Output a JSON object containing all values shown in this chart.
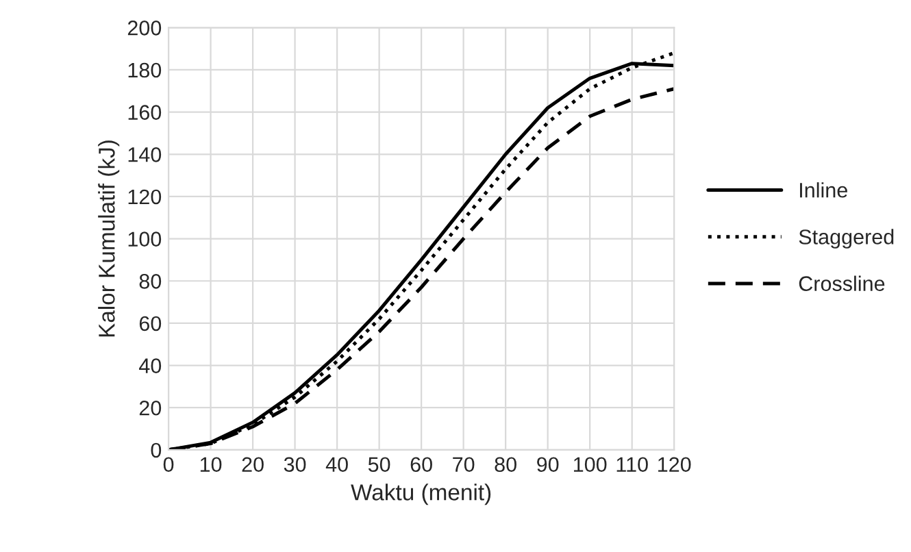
{
  "chart_data": {
    "type": "line",
    "xlabel": "Waktu (menit)",
    "ylabel": "Kalor Kumulatif (kJ)",
    "x": [
      0,
      10,
      20,
      30,
      40,
      50,
      60,
      70,
      80,
      90,
      100,
      110,
      120
    ],
    "series": [
      {
        "name": "Inline",
        "color": "#000000",
        "line_style": "solid",
        "values": [
          0,
          3.5,
          13,
          27,
          45,
          66,
          90,
          115,
          140,
          162,
          176,
          183,
          182
        ]
      },
      {
        "name": "Staggered",
        "color": "#000000",
        "line_style": "dotted",
        "values": [
          0,
          3,
          12,
          25,
          42,
          62,
          85,
          109,
          133,
          155,
          171,
          181,
          188
        ]
      },
      {
        "name": "Crossline",
        "color": "#000000",
        "line_style": "dashed",
        "values": [
          0,
          3,
          11,
          22,
          38,
          56,
          77,
          100,
          122,
          143,
          158,
          166,
          171
        ]
      }
    ],
    "xlim": [
      0,
      120
    ],
    "xticks": [
      0,
      10,
      20,
      30,
      40,
      50,
      60,
      70,
      80,
      90,
      100,
      110,
      120
    ],
    "ylim": [
      0,
      200
    ],
    "yticks": [
      0,
      20,
      40,
      60,
      80,
      100,
      120,
      140,
      160,
      180,
      200
    ],
    "grid": true,
    "legend": "right",
    "marker": "none"
  }
}
